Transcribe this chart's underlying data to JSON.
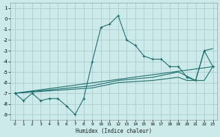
{
  "xlabel": "Humidex (Indice chaleur)",
  "bg_color": "#cceaea",
  "grid_color": "#aacccc",
  "line_color": "#1a6b6b",
  "xlim": [
    -0.5,
    23.5
  ],
  "ylim": [
    -9.5,
    1.5
  ],
  "yticks": [
    1,
    0,
    -1,
    -2,
    -3,
    -4,
    -5,
    -6,
    -7,
    -8,
    -9
  ],
  "xticks": [
    0,
    1,
    2,
    3,
    4,
    5,
    6,
    7,
    8,
    9,
    10,
    11,
    12,
    13,
    14,
    15,
    16,
    17,
    18,
    19,
    20,
    21,
    22,
    23
  ],
  "series_main": [
    [
      0,
      -7.0
    ],
    [
      1,
      -7.7
    ],
    [
      2,
      -7.0
    ],
    [
      3,
      -7.7
    ],
    [
      4,
      -7.5
    ],
    [
      5,
      -7.5
    ],
    [
      6,
      -8.2
    ],
    [
      7,
      -9.0
    ],
    [
      8,
      -7.5
    ],
    [
      9,
      -4.0
    ],
    [
      10,
      -0.8
    ],
    [
      11,
      -0.5
    ],
    [
      12,
      0.3
    ],
    [
      13,
      -2.0
    ],
    [
      14,
      -2.5
    ],
    [
      15,
      -3.5
    ],
    [
      16,
      -3.8
    ],
    [
      17,
      -3.8
    ],
    [
      18,
      -4.5
    ],
    [
      19,
      -4.5
    ],
    [
      20,
      -5.5
    ],
    [
      21,
      -5.8
    ],
    [
      22,
      -3.0
    ],
    [
      23,
      -4.5
    ]
  ],
  "series_linear": [
    [
      0,
      -7.0
    ],
    [
      23,
      -4.5
    ]
  ],
  "series_smooth1": [
    [
      0,
      -7.0
    ],
    [
      9,
      -6.3
    ],
    [
      12,
      -5.8
    ],
    [
      16,
      -5.5
    ],
    [
      19,
      -5.0
    ],
    [
      21,
      -5.8
    ],
    [
      22,
      -3.0
    ],
    [
      23,
      -2.8
    ]
  ],
  "series_smooth2": [
    [
      0,
      -7.0
    ],
    [
      9,
      -6.5
    ],
    [
      12,
      -6.0
    ],
    [
      16,
      -5.8
    ],
    [
      19,
      -5.5
    ],
    [
      20,
      -5.8
    ],
    [
      21,
      -5.8
    ],
    [
      22,
      -5.8
    ],
    [
      23,
      -4.5
    ]
  ]
}
